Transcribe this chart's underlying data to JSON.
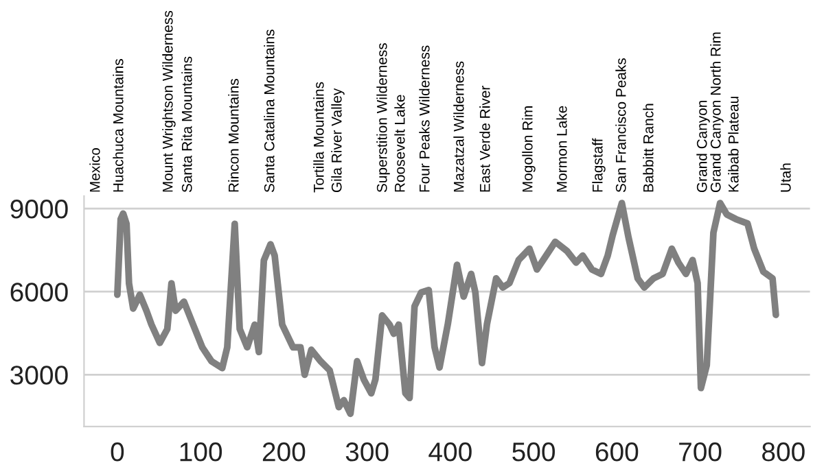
{
  "chart_data": {
    "type": "line",
    "x": [
      0,
      4,
      7,
      11,
      14,
      19,
      27,
      35,
      41,
      51,
      60,
      65,
      70,
      80,
      91,
      102,
      113,
      126,
      132,
      141,
      147,
      156,
      165,
      170,
      176,
      184,
      189,
      198,
      211,
      220,
      225,
      233,
      244,
      255,
      266,
      272,
      280,
      288,
      296,
      305,
      310,
      318,
      327,
      332,
      338,
      346,
      351,
      357,
      365,
      374,
      381,
      387,
      397,
      408,
      416,
      425,
      430,
      438,
      444,
      455,
      463,
      471,
      482,
      495,
      504,
      515,
      526,
      540,
      551,
      559,
      570,
      581,
      589,
      595,
      606,
      614,
      625,
      633,
      644,
      655,
      666,
      674,
      683,
      691,
      697,
      701,
      708,
      716,
      724,
      732,
      743,
      757,
      765,
      776,
      787,
      791
    ],
    "series": [
      {
        "color": "#808080",
        "values": [
          5890,
          8620,
          8820,
          8450,
          6300,
          5390,
          5890,
          5310,
          4810,
          4150,
          4650,
          6300,
          5310,
          5640,
          4810,
          3990,
          3490,
          3240,
          3990,
          8450,
          4650,
          3990,
          4810,
          3820,
          7130,
          7710,
          7300,
          4810,
          3990,
          3990,
          3000,
          3900,
          3490,
          3160,
          1830,
          2080,
          1590,
          3490,
          2830,
          2330,
          2830,
          5140,
          4810,
          4480,
          4810,
          2330,
          2160,
          5470,
          5970,
          6060,
          4000,
          3260,
          4830,
          6970,
          5820,
          6640,
          5980,
          3420,
          4830,
          6480,
          6150,
          6310,
          7140,
          7550,
          6800,
          7300,
          7800,
          7470,
          7050,
          7300,
          6800,
          6640,
          7300,
          8040,
          9200,
          7960,
          6480,
          6150,
          6480,
          6640,
          7550,
          7050,
          6640,
          7140,
          6310,
          2520,
          3340,
          8130,
          9200,
          8790,
          8620,
          8460,
          7550,
          6720,
          6480,
          5160
        ]
      }
    ],
    "xlim": [
      -40,
      832
    ],
    "ylim": [
      1130,
      9450
    ],
    "xticks": [
      0,
      100,
      200,
      300,
      400,
      500,
      600,
      700,
      800
    ],
    "yticks": [
      3000,
      6000,
      9000
    ],
    "annotations": [
      "Mexico",
      "Huachuca Mountains",
      "Mount Wrightson Wilderness",
      "Santa Rita Mountains",
      "Rincon Mountains",
      "Santa Catalina Mountains",
      "Tortilla Mountains",
      "Gila River Valley",
      "Superstition Wilderness",
      "Roosevelt Lake",
      "Four Peaks Wilderness",
      "Mazatzal Wilderness",
      "East Verde River",
      "Mogollon Rim",
      "Mormon Lake",
      "Flagstaff",
      "San Francisco Peaks",
      "Babbitt Ranch",
      "Grand Canyon",
      "Grand Canyon North Rim",
      "Kaibab Plateau",
      "Utah"
    ],
    "legend": false,
    "grid": "y",
    "marker": "none",
    "line_style": "solid"
  }
}
